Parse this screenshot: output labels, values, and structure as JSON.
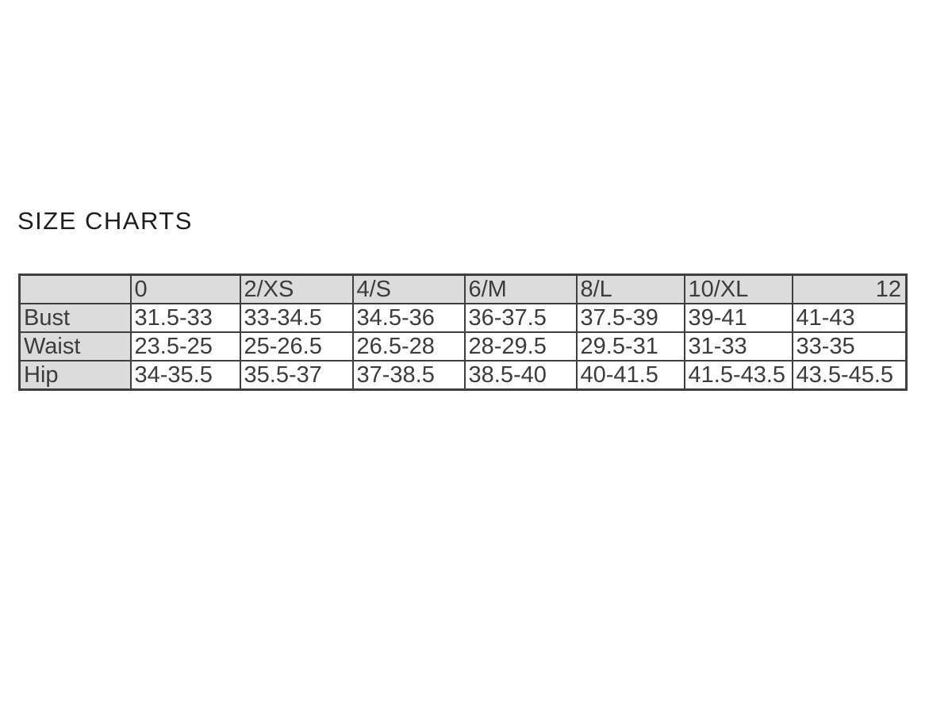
{
  "heading": {
    "title": "SIZE CHARTS"
  },
  "colors": {
    "header_bg": "#dcdcdc",
    "border": "#3f3f3f",
    "text": "#3c3c3c"
  },
  "chart_data": {
    "type": "table",
    "title": "SIZE CHARTS",
    "corner_label": "",
    "columns": [
      "0",
      "2/XS",
      "4/S",
      "6/M",
      "8/L",
      "10/XL",
      "12"
    ],
    "rows": [
      {
        "label": "Bust",
        "values": [
          "31.5-33",
          "33-34.5",
          "34.5-36",
          "36-37.5",
          "37.5-39",
          "39-41",
          "41-43"
        ]
      },
      {
        "label": "Waist",
        "values": [
          "23.5-25",
          "25-26.5",
          "26.5-28",
          "28-29.5",
          "29.5-31",
          "31-33",
          "33-35"
        ]
      },
      {
        "label": "Hip",
        "values": [
          "34-35.5",
          "35.5-37",
          "37-38.5",
          "38.5-40",
          "40-41.5",
          "41.5-43.5",
          "43.5-45.5"
        ]
      }
    ]
  }
}
